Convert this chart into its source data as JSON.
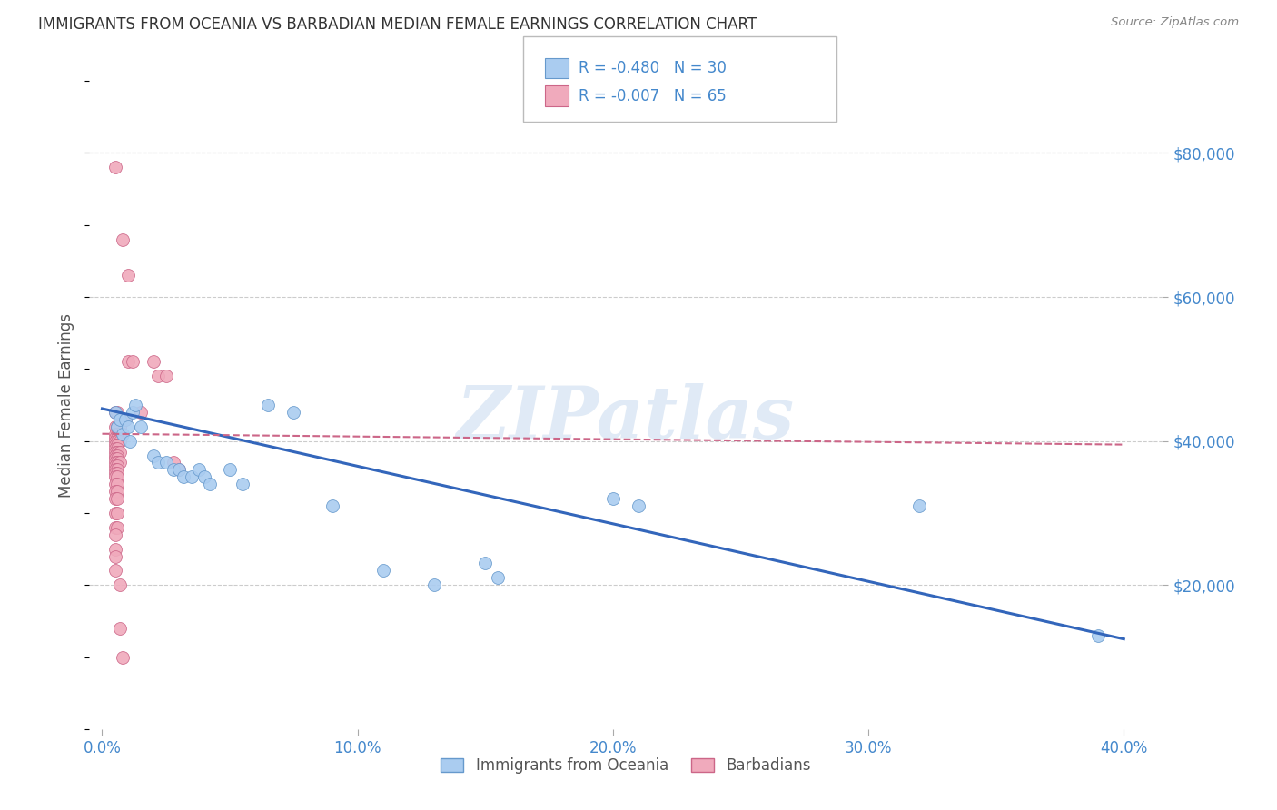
{
  "title": "IMMIGRANTS FROM OCEANIA VS BARBADIAN MEDIAN FEMALE EARNINGS CORRELATION CHART",
  "source": "Source: ZipAtlas.com",
  "xlabel_ticks": [
    "0.0%",
    "10.0%",
    "20.0%",
    "30.0%",
    "40.0%"
  ],
  "xlabel_tick_vals": [
    0.0,
    0.1,
    0.2,
    0.3,
    0.4
  ],
  "ylabel": "Median Female Earnings",
  "ylabel_right_ticks": [
    "$80,000",
    "$60,000",
    "$40,000",
    "$20,000"
  ],
  "ylabel_right_vals": [
    80000,
    60000,
    40000,
    20000
  ],
  "xlim": [
    -0.005,
    0.415
  ],
  "ylim": [
    0,
    90000
  ],
  "oceania_points": [
    [
      0.005,
      44000
    ],
    [
      0.006,
      42000
    ],
    [
      0.007,
      43000
    ],
    [
      0.008,
      41000
    ],
    [
      0.009,
      43000
    ],
    [
      0.01,
      42000
    ],
    [
      0.011,
      40000
    ],
    [
      0.012,
      44000
    ],
    [
      0.013,
      45000
    ],
    [
      0.015,
      42000
    ],
    [
      0.02,
      38000
    ],
    [
      0.022,
      37000
    ],
    [
      0.025,
      37000
    ],
    [
      0.028,
      36000
    ],
    [
      0.03,
      36000
    ],
    [
      0.032,
      35000
    ],
    [
      0.035,
      35000
    ],
    [
      0.038,
      36000
    ],
    [
      0.04,
      35000
    ],
    [
      0.042,
      34000
    ],
    [
      0.05,
      36000
    ],
    [
      0.055,
      34000
    ],
    [
      0.065,
      45000
    ],
    [
      0.075,
      44000
    ],
    [
      0.09,
      31000
    ],
    [
      0.11,
      22000
    ],
    [
      0.13,
      20000
    ],
    [
      0.15,
      23000
    ],
    [
      0.155,
      21000
    ],
    [
      0.2,
      32000
    ],
    [
      0.21,
      31000
    ],
    [
      0.32,
      31000
    ],
    [
      0.39,
      13000
    ]
  ],
  "barbadian_points": [
    [
      0.005,
      78000
    ],
    [
      0.008,
      68000
    ],
    [
      0.01,
      63000
    ],
    [
      0.01,
      51000
    ],
    [
      0.012,
      51000
    ],
    [
      0.005,
      44000
    ],
    [
      0.006,
      44000
    ],
    [
      0.007,
      43000
    ],
    [
      0.008,
      43000
    ],
    [
      0.009,
      43000
    ],
    [
      0.005,
      42000
    ],
    [
      0.006,
      42000
    ],
    [
      0.007,
      42000
    ],
    [
      0.005,
      41000
    ],
    [
      0.006,
      41000
    ],
    [
      0.007,
      41000
    ],
    [
      0.005,
      40500
    ],
    [
      0.006,
      40500
    ],
    [
      0.005,
      40000
    ],
    [
      0.006,
      40000
    ],
    [
      0.007,
      40000
    ],
    [
      0.005,
      39500
    ],
    [
      0.006,
      39500
    ],
    [
      0.005,
      39000
    ],
    [
      0.006,
      39000
    ],
    [
      0.005,
      38500
    ],
    [
      0.006,
      38500
    ],
    [
      0.007,
      38500
    ],
    [
      0.005,
      38000
    ],
    [
      0.006,
      38000
    ],
    [
      0.005,
      37500
    ],
    [
      0.006,
      37500
    ],
    [
      0.005,
      37000
    ],
    [
      0.006,
      37000
    ],
    [
      0.007,
      37000
    ],
    [
      0.005,
      36500
    ],
    [
      0.006,
      36500
    ],
    [
      0.005,
      36000
    ],
    [
      0.006,
      36000
    ],
    [
      0.005,
      35500
    ],
    [
      0.006,
      35500
    ],
    [
      0.005,
      35000
    ],
    [
      0.006,
      35000
    ],
    [
      0.005,
      34000
    ],
    [
      0.006,
      34000
    ],
    [
      0.005,
      33000
    ],
    [
      0.006,
      33000
    ],
    [
      0.005,
      32000
    ],
    [
      0.006,
      32000
    ],
    [
      0.005,
      30000
    ],
    [
      0.006,
      30000
    ],
    [
      0.005,
      28000
    ],
    [
      0.006,
      28000
    ],
    [
      0.005,
      27000
    ],
    [
      0.005,
      25000
    ],
    [
      0.005,
      24000
    ],
    [
      0.005,
      22000
    ],
    [
      0.007,
      20000
    ],
    [
      0.007,
      14000
    ],
    [
      0.008,
      10000
    ],
    [
      0.02,
      51000
    ],
    [
      0.022,
      49000
    ],
    [
      0.025,
      49000
    ],
    [
      0.028,
      37000
    ],
    [
      0.03,
      36000
    ],
    [
      0.015,
      44000
    ]
  ],
  "oceania_line": [
    [
      0.0,
      44500
    ],
    [
      0.4,
      12500
    ]
  ],
  "barbadian_line": [
    [
      0.0,
      41000
    ],
    [
      0.4,
      39500
    ]
  ],
  "scatter_size": 100,
  "oceania_color": "#aaccf0",
  "oceania_edge": "#6699cc",
  "barbadian_color": "#f0aabc",
  "barbadian_edge": "#cc6688",
  "line_blue": "#3366bb",
  "line_pink": "#cc6688",
  "background": "#ffffff",
  "grid_color": "#cccccc",
  "title_color": "#333333",
  "axis_color": "#4488cc",
  "watermark": "ZIPatlas",
  "watermark_color": "#ccddf0"
}
